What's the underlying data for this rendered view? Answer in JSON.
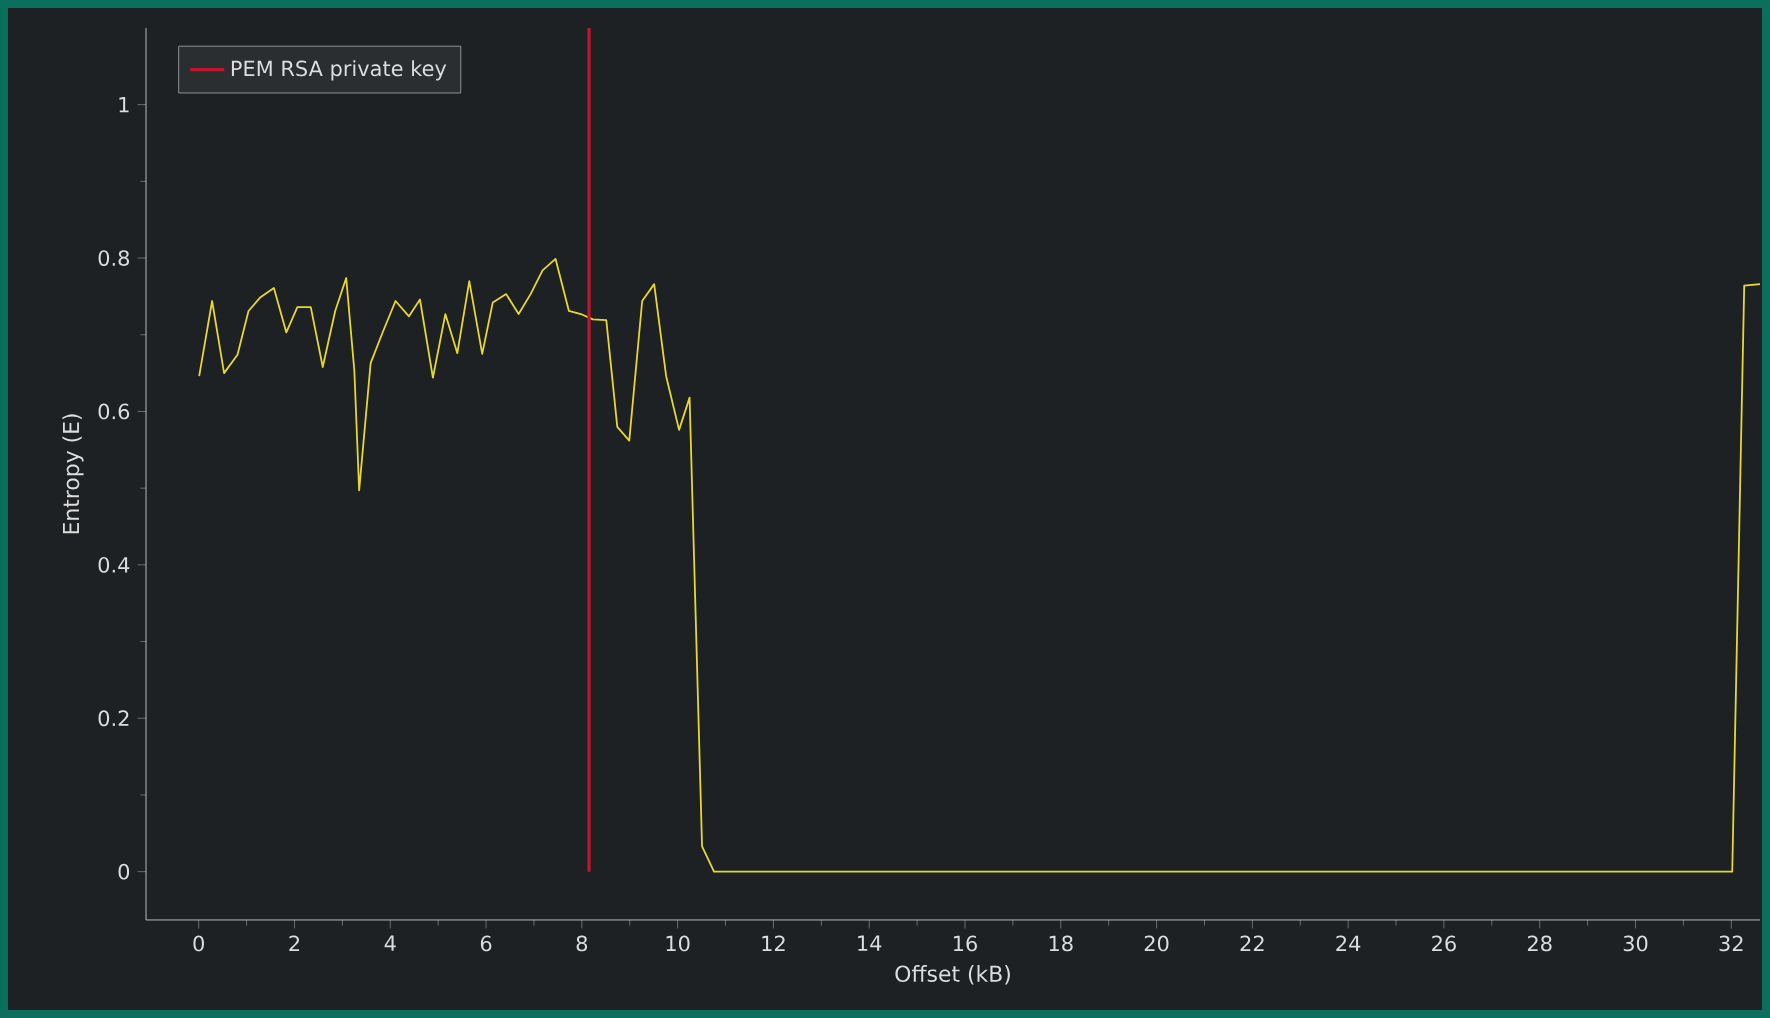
{
  "chart_data": {
    "type": "line",
    "xlabel": "Offset (kB)",
    "ylabel": "Entropy (E)",
    "xlim": [
      -1.1,
      32.6
    ],
    "ylim": [
      -0.063,
      1.1
    ],
    "xticks": [
      0,
      2,
      4,
      6,
      8,
      10,
      12,
      14,
      16,
      18,
      20,
      22,
      24,
      26,
      28,
      30,
      32
    ],
    "yticks": [
      0,
      0.2,
      0.4,
      0.6,
      0.8,
      1
    ],
    "legend": "top left",
    "series": [
      {
        "color": "#e6d830",
        "x": [
          0.01,
          0.28,
          0.53,
          0.81,
          1.04,
          1.29,
          1.57,
          1.83,
          2.06,
          2.34,
          2.59,
          2.85,
          3.08,
          3.25,
          3.35,
          3.59,
          3.84,
          4.11,
          4.39,
          4.62,
          4.89,
          5.15,
          5.4,
          5.65,
          5.92,
          6.14,
          6.42,
          6.68,
          6.93,
          7.18,
          7.45,
          7.73,
          7.98,
          8.23,
          8.51,
          8.74,
          8.99,
          9.26,
          9.51,
          9.76,
          10.03,
          10.25,
          10.51,
          10.76,
          32.02,
          32.27,
          32.6
        ],
        "values": [
          0.646,
          0.744,
          0.65,
          0.674,
          0.731,
          0.749,
          0.761,
          0.703,
          0.736,
          0.736,
          0.658,
          0.731,
          0.774,
          0.653,
          0.497,
          0.663,
          0.703,
          0.744,
          0.724,
          0.746,
          0.644,
          0.727,
          0.676,
          0.77,
          0.675,
          0.742,
          0.753,
          0.727,
          0.753,
          0.784,
          0.799,
          0.731,
          0.727,
          0.72,
          0.719,
          0.58,
          0.562,
          0.744,
          0.766,
          0.646,
          0.576,
          0.618,
          0.033,
          0.0,
          0.0,
          0.764,
          0.766
        ]
      },
      {
        "name": "PEM RSA private key",
        "color": "#c0182a",
        "x": [
          8.15,
          8.15
        ],
        "values": [
          0,
          1.1
        ]
      }
    ]
  }
}
